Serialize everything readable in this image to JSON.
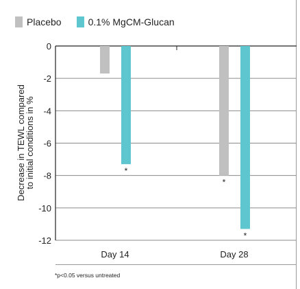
{
  "chart_data": {
    "type": "bar",
    "categories": [
      "Day 14",
      "Day 28"
    ],
    "series": [
      {
        "name": "Placebo",
        "values": [
          -1.7,
          -8.0
        ],
        "color": "#c0c0c0"
      },
      {
        "name": "0.1% MgCM-Glucan",
        "values": [
          -7.3,
          -11.3
        ],
        "color": "#5ec6cf"
      }
    ],
    "significance": [
      [
        "",
        "*"
      ],
      [
        "*",
        "*"
      ]
    ],
    "ylabel_line1": "Decrease in TEWL compared",
    "ylabel_line2": "to initial conditions in %",
    "yticks": [
      0,
      -2,
      -4,
      -6,
      -8,
      -10,
      -12
    ],
    "ylim": [
      -12,
      0
    ],
    "grid": true,
    "legend_position": "top-left",
    "footnote": "*p<0.05 versus untreated"
  }
}
